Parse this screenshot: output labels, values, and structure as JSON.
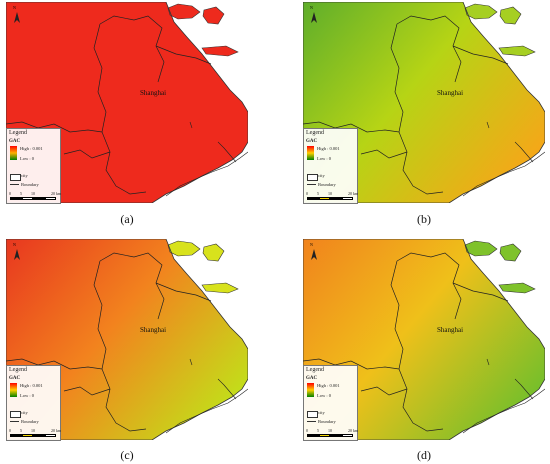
{
  "city_label": "Shanghai",
  "legend": {
    "title": "Legend",
    "variable": "GAC",
    "high": "High : 0.001",
    "low": "Low : 0",
    "city": "city",
    "boundary": "Boundary"
  },
  "north_label": "N",
  "scale": {
    "labels": [
      "0",
      "5",
      "10",
      "20 km"
    ]
  },
  "panels": [
    {
      "caption": "(a)",
      "gradient": [
        "#ee2a1d",
        "#ee2a1d",
        "#ee2a1d"
      ],
      "island": "#ee2a1d",
      "legend_ramp": [
        "#ff0000",
        "#ffb000",
        "#008000"
      ],
      "scale_colors": [
        "#000000",
        "#ffffff",
        "#000000",
        "#ffffff"
      ]
    },
    {
      "caption": "(b)",
      "gradient": [
        "#5fae2b",
        "#b6d415",
        "#f4a818"
      ],
      "island": "#a6cf22",
      "legend_ramp": [
        "#ff0000",
        "#ffd000",
        "#008000"
      ],
      "scale_colors": [
        "#000000",
        "#f2d400",
        "#000000",
        "#ffffff"
      ]
    },
    {
      "caption": "(c)",
      "gradient": [
        "#e8371f",
        "#f2831e",
        "#c4dc1a"
      ],
      "island": "#d8e21c",
      "legend_ramp": [
        "#ff0000",
        "#ffd000",
        "#008000"
      ],
      "scale_colors": [
        "#000000",
        "#f2d400",
        "#000000",
        "#ffffff"
      ]
    },
    {
      "caption": "(d)",
      "gradient": [
        "#f1831d",
        "#efc01a",
        "#78bf2a"
      ],
      "island": "#7fc22b",
      "legend_ramp": [
        "#ff0000",
        "#ffd000",
        "#008000"
      ],
      "scale_colors": [
        "#000000",
        "#f2d400",
        "#000000",
        "#ffffff"
      ]
    }
  ]
}
